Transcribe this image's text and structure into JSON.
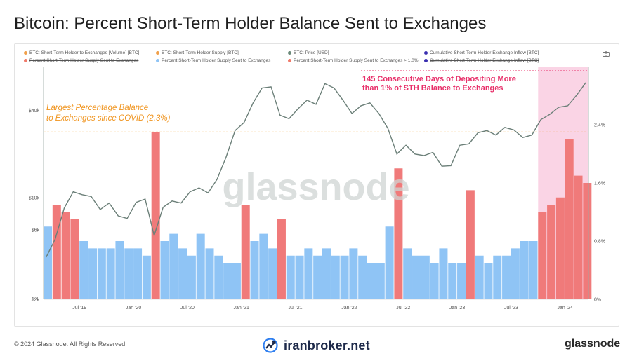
{
  "title": "Bitcoin: Percent Short-Term Holder Balance Sent to Exchanges",
  "legend": [
    {
      "label": "BTC: Short-Term Holder to Exchanges [Volume] [BTC]",
      "color": "#f0a04b",
      "struck": true
    },
    {
      "label": "BTC: Short-Term Holder Supply [BTC]",
      "color": "#f0a04b",
      "struck": true
    },
    {
      "label": "BTC: Price [USD]",
      "color": "#6b8a7a",
      "struck": false
    },
    {
      "label": "Cumulative Short-Term Holder Exchange Inflow [BTC]",
      "color": "#3a2fb0",
      "struck": true
    },
    {
      "label": "Percent Short-Term Holder Supply Sent to Exchanges",
      "color": "#f07a6a",
      "struck": true
    },
    {
      "label": "Percent Short-Term Holder Supply Sent to Exchanges",
      "color": "#8fc4f5",
      "struck": false
    },
    {
      "label": "Percent Short-Term Holder Supply Sent to Exchanges > 1.0%",
      "color": "#f07a6a",
      "struck": false
    },
    {
      "label": "Cumulative Short-Term Holder Exchange Inflow [BTC]",
      "color": "#3a2fb0",
      "struck": true
    }
  ],
  "annotations": {
    "covid_line1": "Largest Percentage Balance",
    "covid_line2": "to Exchanges since COVID (2.3%)",
    "streak_line1": "145 Consecutive Days of Depositing More",
    "streak_line2": "than 1% of STH Balance to Exchanges"
  },
  "watermark": "glassnode",
  "footer": {
    "copyright": "© 2024 Glassnode. All Rights Reserved.",
    "center_brand": "iranbroker.net",
    "right_brand": "glassnode"
  },
  "colors": {
    "bar_normal": "#8fc4f5",
    "bar_high": "#f07a7a",
    "price_line": "#6b7f78",
    "annotation_orange": "#f0941e",
    "annotation_pink": "#e8306a",
    "highlight_region": "#f8c6dc"
  },
  "chart_data": {
    "type": "bar",
    "x_range": [
      "2019-03",
      "2024-03"
    ],
    "x_ticks": [
      "Jul '19",
      "Jan '20",
      "Jul '20",
      "Jan '21",
      "Jul '21",
      "Jan '22",
      "Jul '22",
      "Jan '23",
      "Jul '23",
      "Jan '24"
    ],
    "y_left": {
      "label": "BTC: Price [USD]",
      "scale": "log",
      "ticks": [
        "$2k",
        "$6k",
        "$10k",
        "$40k"
      ],
      "tick_values": [
        2000,
        6000,
        10000,
        40000
      ],
      "range": [
        2000,
        80000
      ]
    },
    "y_right": {
      "label": "Percent",
      "ticks": [
        "0%",
        "0.8%",
        "1.6%",
        "2.4%"
      ],
      "tick_values": [
        0,
        0.8,
        1.6,
        2.4
      ],
      "range": [
        0,
        3.2
      ]
    },
    "reference_line": {
      "y_right": 2.3,
      "label": "Largest Percentage Balance to Exchanges since COVID (2.3%)"
    },
    "highlight_region": {
      "from": "2023-10",
      "to": "2024-03",
      "label": "145 Consecutive Days of Depositing More than 1% of STH Balance to Exchanges"
    },
    "series": [
      {
        "name": "Percent Short-Term Holder Supply Sent to Exchanges",
        "axis": "right",
        "threshold": 1.0,
        "x": [
          "2019-03",
          "2019-04",
          "2019-05",
          "2019-06",
          "2019-07",
          "2019-08",
          "2019-09",
          "2019-10",
          "2019-11",
          "2019-12",
          "2020-01",
          "2020-02",
          "2020-03",
          "2020-04",
          "2020-05",
          "2020-06",
          "2020-07",
          "2020-08",
          "2020-09",
          "2020-10",
          "2020-11",
          "2020-12",
          "2021-01",
          "2021-02",
          "2021-03",
          "2021-04",
          "2021-05",
          "2021-06",
          "2021-07",
          "2021-08",
          "2021-09",
          "2021-10",
          "2021-11",
          "2021-12",
          "2022-01",
          "2022-02",
          "2022-03",
          "2022-04",
          "2022-05",
          "2022-06",
          "2022-07",
          "2022-08",
          "2022-09",
          "2022-10",
          "2022-11",
          "2022-12",
          "2023-01",
          "2023-02",
          "2023-03",
          "2023-04",
          "2023-05",
          "2023-06",
          "2023-07",
          "2023-08",
          "2023-09",
          "2023-10",
          "2023-11",
          "2023-12",
          "2024-01",
          "2024-02",
          "2024-03"
        ],
        "values": [
          1.0,
          1.3,
          1.2,
          1.1,
          0.8,
          0.7,
          0.7,
          0.7,
          0.8,
          0.7,
          0.7,
          0.6,
          2.3,
          0.8,
          0.9,
          0.7,
          0.6,
          0.9,
          0.7,
          0.6,
          0.5,
          0.5,
          1.3,
          0.8,
          0.9,
          0.7,
          1.1,
          0.6,
          0.6,
          0.7,
          0.6,
          0.7,
          0.6,
          0.6,
          0.7,
          0.6,
          0.5,
          0.5,
          1.0,
          1.8,
          0.7,
          0.6,
          0.6,
          0.5,
          0.7,
          0.5,
          0.5,
          1.5,
          0.6,
          0.5,
          0.6,
          0.6,
          0.7,
          0.8,
          0.8,
          1.2,
          1.3,
          1.4,
          2.2,
          1.7,
          1.6
        ]
      },
      {
        "name": "BTC: Price [USD]",
        "axis": "left",
        "x": [
          "2019-03",
          "2019-04",
          "2019-05",
          "2019-06",
          "2019-07",
          "2019-08",
          "2019-09",
          "2019-10",
          "2019-11",
          "2019-12",
          "2020-01",
          "2020-02",
          "2020-03",
          "2020-04",
          "2020-05",
          "2020-06",
          "2020-07",
          "2020-08",
          "2020-09",
          "2020-10",
          "2020-11",
          "2020-12",
          "2021-01",
          "2021-02",
          "2021-03",
          "2021-04",
          "2021-05",
          "2021-06",
          "2021-07",
          "2021-08",
          "2021-09",
          "2021-10",
          "2021-11",
          "2021-12",
          "2022-01",
          "2022-02",
          "2022-03",
          "2022-04",
          "2022-05",
          "2022-06",
          "2022-07",
          "2022-08",
          "2022-09",
          "2022-10",
          "2022-11",
          "2022-12",
          "2023-01",
          "2023-02",
          "2023-03",
          "2023-04",
          "2023-05",
          "2023-06",
          "2023-07",
          "2023-08",
          "2023-09",
          "2023-10",
          "2023-11",
          "2023-12",
          "2024-01",
          "2024-02",
          "2024-03"
        ],
        "values": [
          3900,
          5200,
          8500,
          11000,
          10500,
          10200,
          8300,
          9200,
          7500,
          7200,
          9300,
          9800,
          5500,
          8600,
          9500,
          9200,
          11000,
          11700,
          10800,
          13400,
          19000,
          29000,
          33000,
          45000,
          57000,
          58000,
          37000,
          35000,
          41000,
          47000,
          44000,
          61000,
          57000,
          47000,
          38000,
          43000,
          45000,
          38000,
          30000,
          20000,
          23000,
          20000,
          19500,
          20500,
          16500,
          16600,
          23000,
          23500,
          28000,
          29000,
          27000,
          30500,
          29300,
          26000,
          27000,
          34500,
          37500,
          42000,
          43000,
          51000,
          62000
        ]
      }
    ]
  }
}
